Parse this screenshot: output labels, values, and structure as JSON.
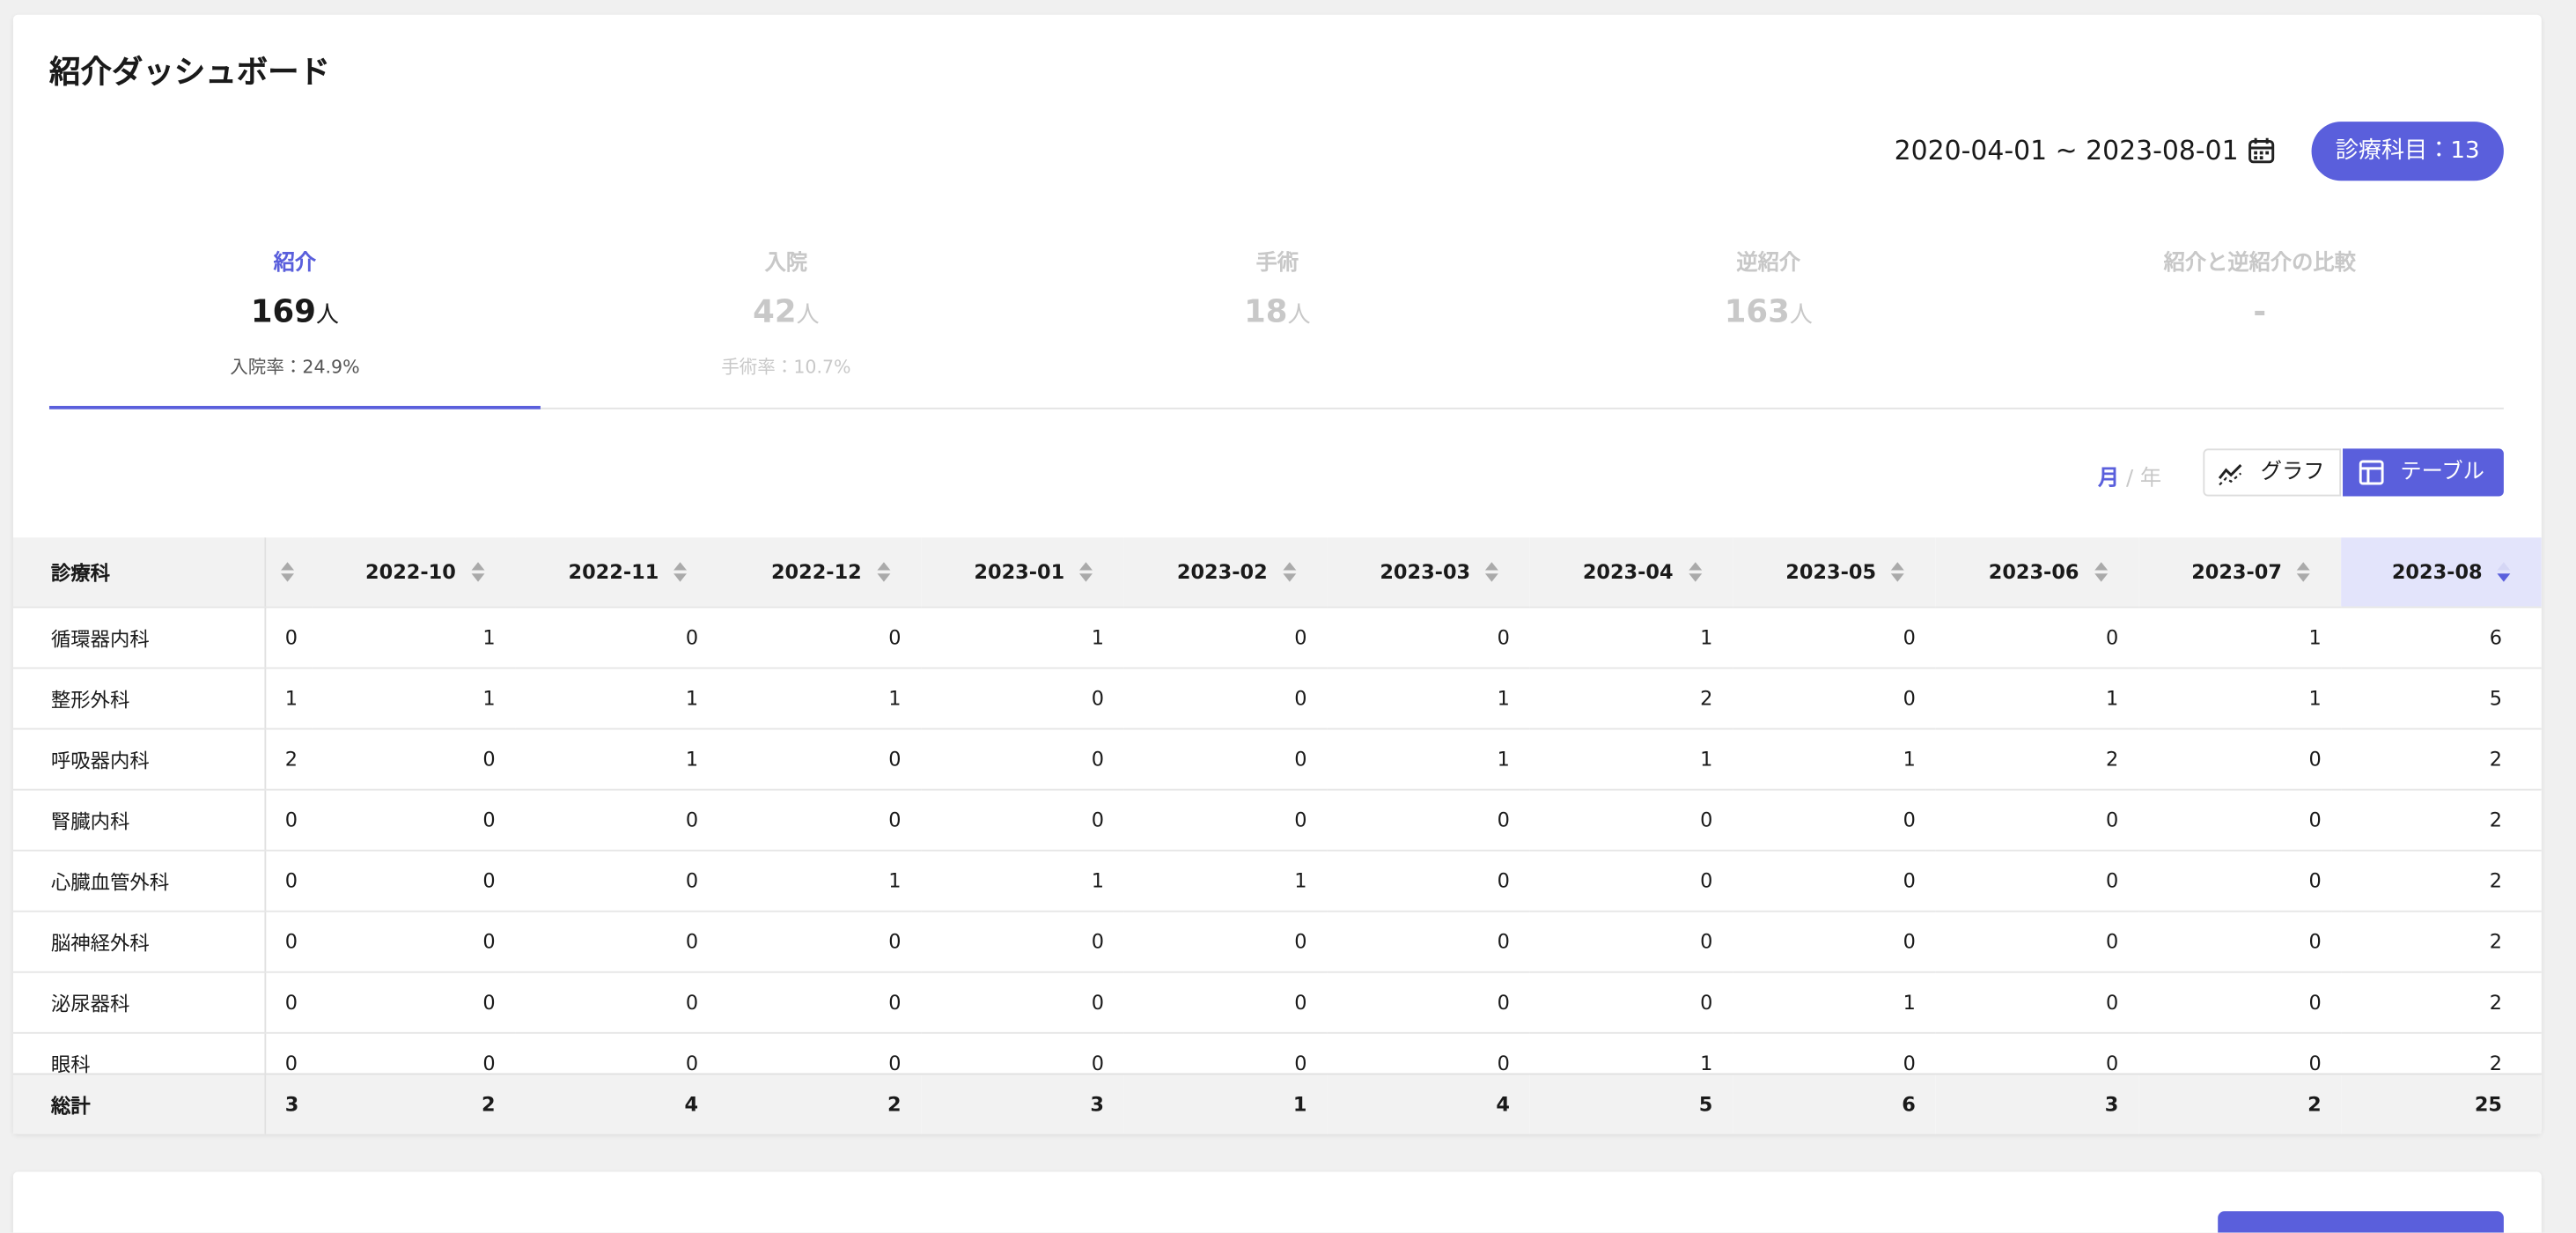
{
  "header": {
    "title": "紹介ダッシュボード",
    "date_range": "2020-04-01 ~ 2023-08-01",
    "department_button": "診療科目：13"
  },
  "tabs": [
    {
      "label": "紹介",
      "value": "169",
      "unit": "人",
      "sub": "入院率：24.9%"
    },
    {
      "label": "入院",
      "value": "42",
      "unit": "人",
      "sub": "手術率：10.7%"
    },
    {
      "label": "手術",
      "value": "18",
      "unit": "人"
    },
    {
      "label": "逆紹介",
      "value": "163",
      "unit": "人"
    },
    {
      "label": "紹介と逆紹介の比較",
      "value": "-"
    }
  ],
  "period_toggle": {
    "month": "月",
    "separator": "/",
    "year": "年"
  },
  "view_buttons": {
    "graph": "グラフ",
    "table": "テーブル"
  },
  "table": {
    "header": [
      "診療科",
      null,
      "2022-10",
      "2022-11",
      "2022-12",
      "2023-01",
      "2023-02",
      "2023-03",
      "2023-04",
      "2023-05",
      "2023-06",
      "2023-07",
      "2023-08"
    ],
    "rows": [
      [
        "循環器内科",
        0,
        1,
        0,
        0,
        1,
        0,
        0,
        1,
        0,
        0,
        1,
        6
      ],
      [
        "整形外科",
        1,
        1,
        1,
        1,
        0,
        0,
        1,
        2,
        0,
        1,
        1,
        5
      ],
      [
        "呼吸器内科",
        2,
        0,
        1,
        0,
        0,
        0,
        1,
        1,
        1,
        2,
        0,
        2
      ],
      [
        "腎臓内科",
        0,
        0,
        0,
        0,
        0,
        0,
        0,
        0,
        0,
        0,
        0,
        2
      ],
      [
        "心臓血管外科",
        0,
        0,
        0,
        1,
        1,
        1,
        0,
        0,
        0,
        0,
        0,
        2
      ],
      [
        "脳神経外科",
        0,
        0,
        0,
        0,
        0,
        0,
        0,
        0,
        0,
        0,
        0,
        2
      ],
      [
        "泌尿器科",
        0,
        0,
        0,
        0,
        0,
        0,
        0,
        0,
        1,
        0,
        0,
        2
      ],
      [
        "眼科",
        0,
        0,
        0,
        0,
        0,
        0,
        0,
        1,
        0,
        0,
        0,
        2
      ]
    ],
    "footer": [
      "総計",
      3,
      2,
      4,
      2,
      3,
      1,
      4,
      5,
      6,
      3,
      2,
      25
    ]
  }
}
